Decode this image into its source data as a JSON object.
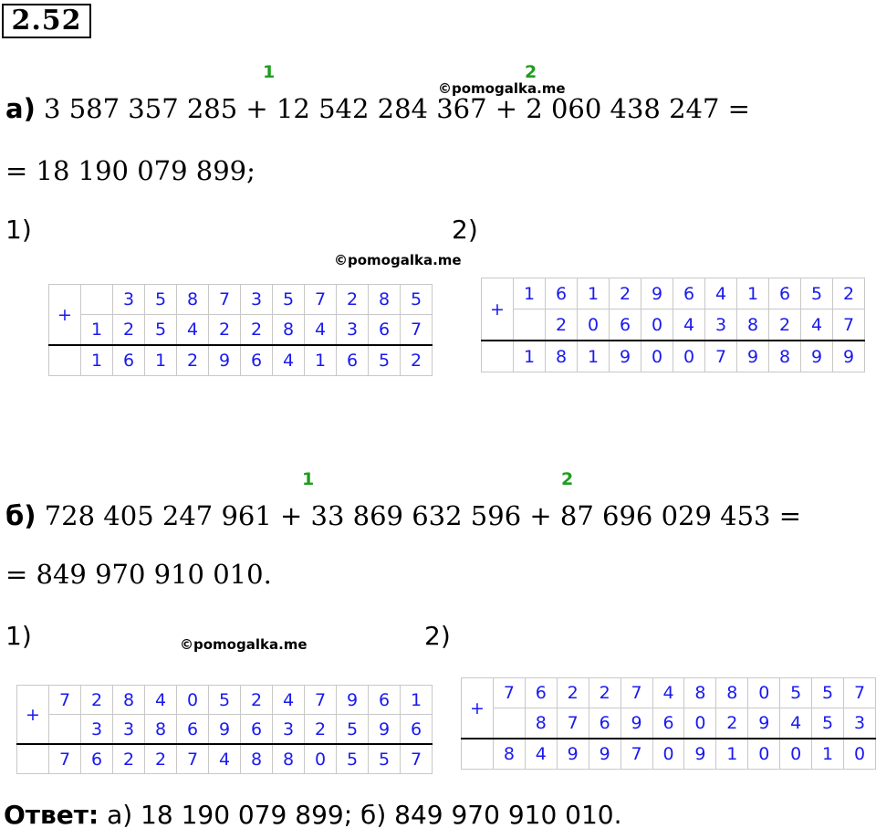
{
  "problem_number": "2.52",
  "watermark": "©pomogalka.me",
  "part_a": {
    "label": "а)",
    "expression": "3 587 357 285 + 12 542 284 367 + 2 060 438 247 =",
    "result_line": "= 18 190 079 899;",
    "carry_1": "1",
    "carry_2": "2",
    "step1_label": "1)",
    "step2_label": "2)",
    "step1_table": {
      "operator": "+",
      "row1": [
        "",
        "3",
        "5",
        "8",
        "7",
        "3",
        "5",
        "7",
        "2",
        "8",
        "5"
      ],
      "row2": [
        "1",
        "2",
        "5",
        "4",
        "2",
        "2",
        "8",
        "4",
        "3",
        "6",
        "7"
      ],
      "sum": [
        "1",
        "6",
        "1",
        "2",
        "9",
        "6",
        "4",
        "1",
        "6",
        "5",
        "2"
      ]
    },
    "step2_table": {
      "operator": "+",
      "row1": [
        "1",
        "6",
        "1",
        "2",
        "9",
        "6",
        "4",
        "1",
        "6",
        "5",
        "2"
      ],
      "row2": [
        "",
        "2",
        "0",
        "6",
        "0",
        "4",
        "3",
        "8",
        "2",
        "4",
        "7"
      ],
      "sum": [
        "1",
        "8",
        "1",
        "9",
        "0",
        "0",
        "7",
        "9",
        "8",
        "9",
        "9"
      ]
    }
  },
  "part_b": {
    "label": "б)",
    "expression": "728 405 247 961 + 33 869 632 596 + 87 696 029 453 =",
    "result_line": "= 849 970 910 010.",
    "carry_1": "1",
    "carry_2": "2",
    "step1_label": "1)",
    "step2_label": "2)",
    "step1_table": {
      "operator": "+",
      "row1": [
        "7",
        "2",
        "8",
        "4",
        "0",
        "5",
        "2",
        "4",
        "7",
        "9",
        "6",
        "1"
      ],
      "row2": [
        "",
        "3",
        "3",
        "8",
        "6",
        "9",
        "6",
        "3",
        "2",
        "5",
        "9",
        "6"
      ],
      "sum": [
        "7",
        "6",
        "2",
        "2",
        "7",
        "4",
        "8",
        "8",
        "0",
        "5",
        "5",
        "7"
      ]
    },
    "step2_table": {
      "operator": "+",
      "row1": [
        "7",
        "6",
        "2",
        "2",
        "7",
        "4",
        "8",
        "8",
        "0",
        "5",
        "5",
        "7"
      ],
      "row2": [
        "",
        "8",
        "7",
        "6",
        "9",
        "6",
        "0",
        "2",
        "9",
        "4",
        "5",
        "3"
      ],
      "sum": [
        "8",
        "4",
        "9",
        "9",
        "7",
        "0",
        "9",
        "1",
        "0",
        "0",
        "1",
        "0"
      ]
    }
  },
  "answer": {
    "label": "Ответ:",
    "text": " а) 18 190 079 899;  б) 849 970 910 010."
  }
}
